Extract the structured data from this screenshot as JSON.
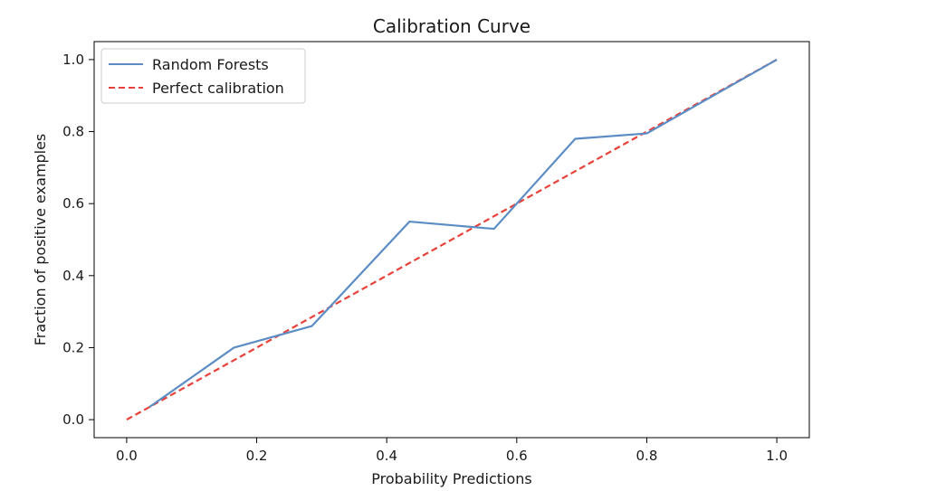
{
  "chart_data": {
    "type": "line",
    "title": "Calibration Curve",
    "xlabel": "Probability Predictions",
    "ylabel": "Fraction of positive examples",
    "xlim": [
      -0.05,
      1.05
    ],
    "ylim": [
      -0.05,
      1.05
    ],
    "xticks": [
      "0.0",
      "0.2",
      "0.4",
      "0.6",
      "0.8",
      "1.0"
    ],
    "yticks": [
      "0.0",
      "0.2",
      "0.4",
      "0.6",
      "0.8",
      "1.0"
    ],
    "grid": false,
    "legend_position": "top-left",
    "series": [
      {
        "name": "Random Forests",
        "style": "solid",
        "color": "#5b8cc4",
        "x": [
          0.035,
          0.165,
          0.285,
          0.435,
          0.565,
          0.69,
          0.8,
          1.0
        ],
        "y": [
          0.035,
          0.2,
          0.26,
          0.55,
          0.53,
          0.78,
          0.795,
          1.0
        ]
      },
      {
        "name": "Perfect calibration",
        "style": "dashed",
        "color": "#e8413a",
        "x": [
          0.0,
          1.0
        ],
        "y": [
          0.0,
          1.0
        ]
      }
    ]
  }
}
